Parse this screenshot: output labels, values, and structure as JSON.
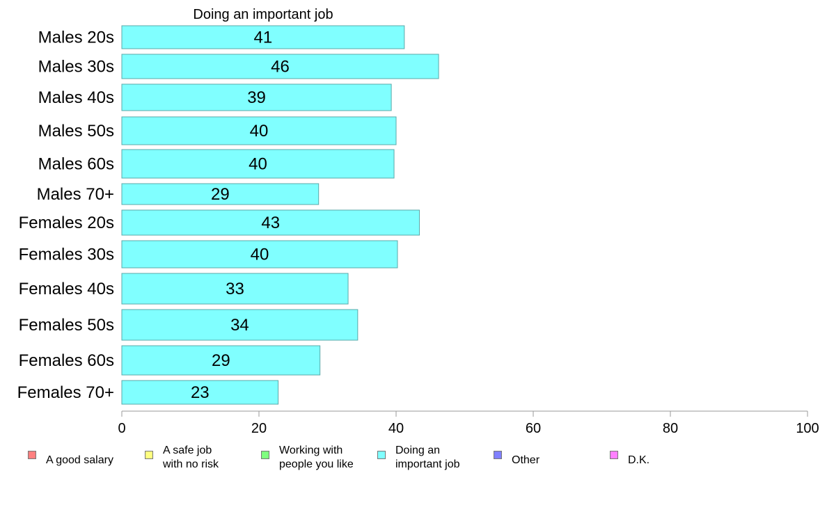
{
  "chart_data": {
    "type": "bar",
    "orientation": "horizontal",
    "title": "Doing an important job",
    "categories": [
      "Males 20s",
      "Males 30s",
      "Males 40s",
      "Males 50s",
      "Males 60s",
      "Males 70+",
      "Females 20s",
      "Females 30s",
      "Females 40s",
      "Females 50s",
      "Females 60s",
      "Females 70+"
    ],
    "values": [
      41.2,
      46.2,
      39.3,
      40.0,
      39.7,
      28.7,
      43.4,
      40.2,
      33.0,
      34.4,
      28.9,
      22.8
    ],
    "value_labels": [
      "41",
      "46",
      "39",
      "40",
      "40",
      "29",
      "43",
      "40",
      "33",
      "34",
      "29",
      "23"
    ],
    "xlim": [
      0,
      100
    ],
    "xticks": [
      0,
      20,
      40,
      60,
      80,
      100
    ],
    "bar_color": "#80ffff",
    "bar_edge_color": "#5aa8a8",
    "grid": false,
    "legend": {
      "position": "bottom",
      "items": [
        {
          "label": "A good salary",
          "color": "#ff8080"
        },
        {
          "label": "A safe job\nwith no risk",
          "color": "#ffff80"
        },
        {
          "label": "Working with\npeople you like",
          "color": "#80ff80"
        },
        {
          "label": "Doing an\nimportant job",
          "color": "#80ffff"
        },
        {
          "label": "Other",
          "color": "#8080ff"
        },
        {
          "label": "D.K.",
          "color": "#ff80ff"
        }
      ]
    }
  }
}
